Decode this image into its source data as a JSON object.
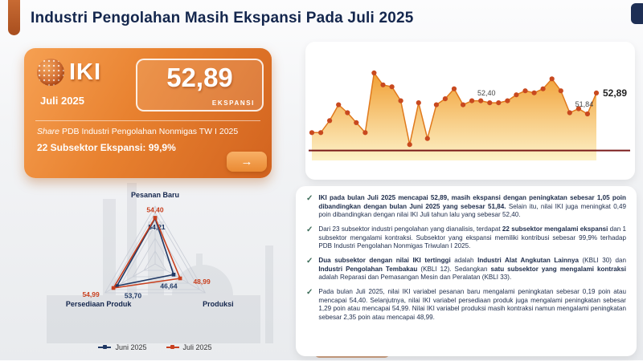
{
  "header": {
    "title": "Industri Pengolahan Masih Ekspansi Pada Juli 2025"
  },
  "iki_card": {
    "logo": "IKI",
    "period": "Juli 2025",
    "value": "52,89",
    "status": "EKSPANSI",
    "share_prefix": "Share",
    "share_rest": " PDB Industri Pengolahan Nonmigas TW I 2025",
    "subsector_text": "22 Subsektor Ekspansi: 99,9%",
    "arrow_icon": "→"
  },
  "chart_data": [
    {
      "type": "line",
      "title": "",
      "values": [
        50.9,
        50.9,
        51.5,
        52.3,
        51.9,
        51.4,
        50.9,
        53.9,
        53.3,
        53.2,
        52.5,
        50.3,
        52.4,
        50.6,
        52.3,
        52.6,
        53.1,
        52.3,
        52.5,
        52.5,
        52.4,
        52.4,
        52.5,
        52.8,
        53.0,
        52.9,
        53.1,
        53.6,
        53.0,
        51.9,
        52.1,
        51.84,
        52.89
      ],
      "ylim": [
        49.5,
        54.5
      ],
      "threshold": 50,
      "annotations": [
        {
          "index": 20,
          "label": "52,40"
        },
        {
          "index": 31,
          "label": "51,84"
        },
        {
          "index": 32,
          "label": "52,89",
          "emphasis": true
        }
      ],
      "line_color": "#e0791c",
      "dot_color": "#c8491f",
      "threshold_color": "#7a1a1a",
      "area_top_color": "#f09a28",
      "area_bottom_color": "#fdf0c2"
    },
    {
      "type": "radar",
      "categories": [
        "Pesanan Baru",
        "Produksi",
        "Persediaan Produk"
      ],
      "series": [
        {
          "name": "Juni 2025",
          "values": [
            54.21,
            46.64,
            53.7
          ],
          "color": "#1f3864"
        },
        {
          "name": "Juli 2025",
          "values": [
            54.4,
            48.99,
            54.99
          ],
          "color": "#c8401f"
        }
      ],
      "range": [
        40,
        58
      ],
      "grid_color": "#c9cdd6"
    }
  ],
  "insights": {
    "check_icon": "✓",
    "bullets": [
      {
        "runs": [
          {
            "t": "IKI pada bulan Juli 2025 mencapai 52,89, masih ekspansi dengan peningkatan sebesar 1,05 poin dibandingkan dengan bulan Juni 2025 yang sebesar 51,84.",
            "b": true
          },
          {
            "t": " Selain itu, nilai IKI juga meningkat 0,49 poin dibandingkan dengan nilai IKI Juli tahun lalu yang sebesar 52,40.",
            "b": false
          }
        ]
      },
      {
        "runs": [
          {
            "t": "Dari 23 subsektor industri pengolahan yang dianalisis, terdapat ",
            "b": false
          },
          {
            "t": "22 subsektor mengalami ekspansi",
            "b": true
          },
          {
            "t": " dan 1 subsektor mengalami kontraksi. Subsektor yang ekspansi memiliki kontribusi sebesar 99,9% terhadap PDB Industri Pengolahan Nonmigas Triwulan I 2025.",
            "b": false
          }
        ]
      },
      {
        "runs": [
          {
            "t": "Dua subsektor dengan nilai IKI tertinggi",
            "b": true
          },
          {
            "t": " adalah ",
            "b": false
          },
          {
            "t": "Industri Alat Angkutan Lainnya",
            "b": true
          },
          {
            "t": " (KBLI 30) dan ",
            "b": false
          },
          {
            "t": "Industri Pengolahan Tembakau",
            "b": true
          },
          {
            "t": " (KBLI 12). Sedangkan ",
            "b": false
          },
          {
            "t": "satu subsektor yang mengalami kontraksi",
            "b": true
          },
          {
            "t": " adalah Reparasi dan Pemasangan Mesin dan Peralatan (KBLI 33).",
            "b": false
          }
        ]
      },
      {
        "runs": [
          {
            "t": "Pada bulan Juli 2025, nilai IKI variabel pesanan baru mengalami peningkatan sebesar 0,19 poin atau mencapai 54,40. Selanjutnya, nilai IKI variabel persediaan produk juga mengalami peningkatan sebesar 1,29 poin atau mencapai 54,99. Nilai IKI variabel produksi masih kontraksi namun mengalami peningkatan sebesar 2,35 poin atau mencapai 48,99.",
            "b": false
          }
        ]
      }
    ]
  },
  "colors": {
    "accent_orange": "#e8812f",
    "navy": "#14264d",
    "maroon": "#7a1a1a"
  }
}
